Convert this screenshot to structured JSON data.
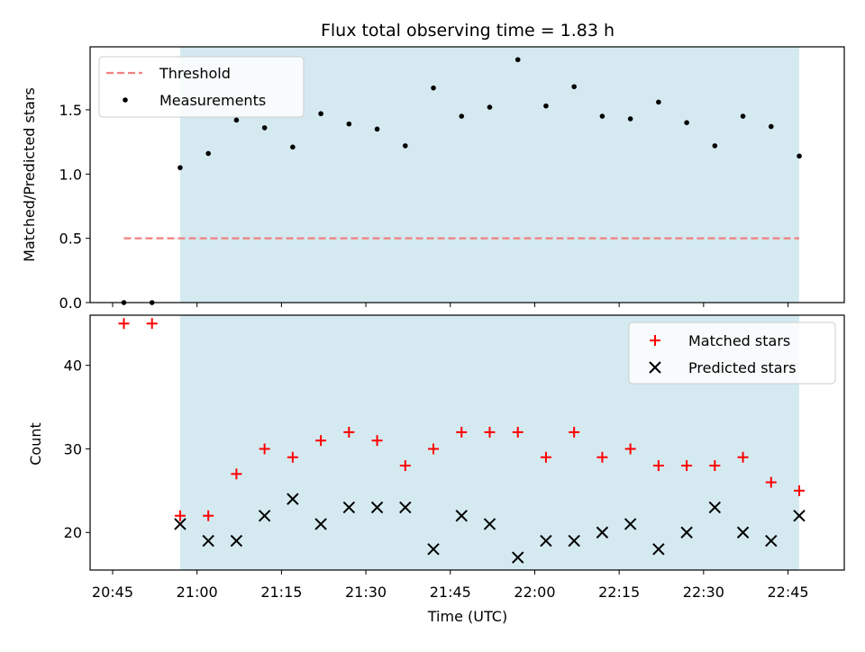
{
  "chart_data": {
    "title": "Flux total observing time = 1.83 h",
    "xlabel": "Time (UTC)",
    "x_ticks": [
      "20:45",
      "21:00",
      "21:15",
      "21:30",
      "21:45",
      "22:00",
      "22:15",
      "22:30",
      "22:45"
    ],
    "x_tick_minutes": [
      1245,
      1260,
      1275,
      1290,
      1305,
      1320,
      1335,
      1350,
      1365
    ],
    "xlim_minutes": [
      1241,
      1375
    ],
    "shaded_span_minutes": [
      1257,
      1367
    ],
    "shaded_color": "#d4eaf0",
    "times": [
      "20:47",
      "20:52",
      "20:57",
      "21:02",
      "21:07",
      "21:12",
      "21:17",
      "21:22",
      "21:27",
      "21:32",
      "21:37",
      "21:42",
      "21:47",
      "21:52",
      "21:57",
      "22:02",
      "22:07",
      "22:12",
      "22:17",
      "22:22",
      "22:27",
      "22:32",
      "22:37",
      "22:42",
      "22:47"
    ],
    "time_minutes": [
      1247,
      1252,
      1257,
      1262,
      1267,
      1272,
      1277,
      1282,
      1287,
      1292,
      1297,
      1302,
      1307,
      1312,
      1317,
      1322,
      1327,
      1332,
      1337,
      1342,
      1347,
      1352,
      1357,
      1362,
      1367
    ],
    "top": {
      "type": "scatter",
      "ylabel": "Matched/Predicted stars",
      "ylim": [
        0,
        1.99
      ],
      "y_ticks": [
        0.0,
        0.5,
        1.0,
        1.5
      ],
      "y_tick_labels": [
        "0.0",
        "0.5",
        "1.0",
        "1.5"
      ],
      "threshold": {
        "name": "Threshold",
        "value": 0.5,
        "color": "#f08080",
        "x_range_minutes": [
          1247,
          1367
        ]
      },
      "measurements": {
        "name": "Measurements",
        "color": "#000000",
        "values": [
          0.0,
          0.0,
          1.05,
          1.16,
          1.42,
          1.36,
          1.21,
          1.47,
          1.39,
          1.35,
          1.22,
          1.67,
          1.45,
          1.52,
          1.89,
          1.53,
          1.68,
          1.45,
          1.43,
          1.56,
          1.4,
          1.22,
          1.45,
          1.37,
          1.14
        ]
      },
      "legend_position": "upper-left"
    },
    "bottom": {
      "type": "scatter",
      "ylabel": "Count",
      "ylim": [
        15.5,
        46.0
      ],
      "y_ticks": [
        20,
        30,
        40
      ],
      "y_tick_labels": [
        "20",
        "30",
        "40"
      ],
      "series": [
        {
          "name": "Matched stars",
          "marker": "plus",
          "color": "#ff0000",
          "values": [
            45,
            45,
            22,
            22,
            27,
            30,
            29,
            31,
            32,
            31,
            28,
            30,
            32,
            32,
            32,
            29,
            32,
            29,
            30,
            28,
            28,
            28,
            29,
            26,
            25
          ]
        },
        {
          "name": "Predicted stars",
          "marker": "x",
          "color": "#000000",
          "values": [
            null,
            null,
            21,
            19,
            19,
            22,
            24,
            21,
            23,
            23,
            23,
            18,
            22,
            21,
            17,
            19,
            19,
            20,
            21,
            18,
            20,
            23,
            20,
            19,
            22
          ]
        }
      ],
      "legend_position": "upper-right"
    }
  }
}
